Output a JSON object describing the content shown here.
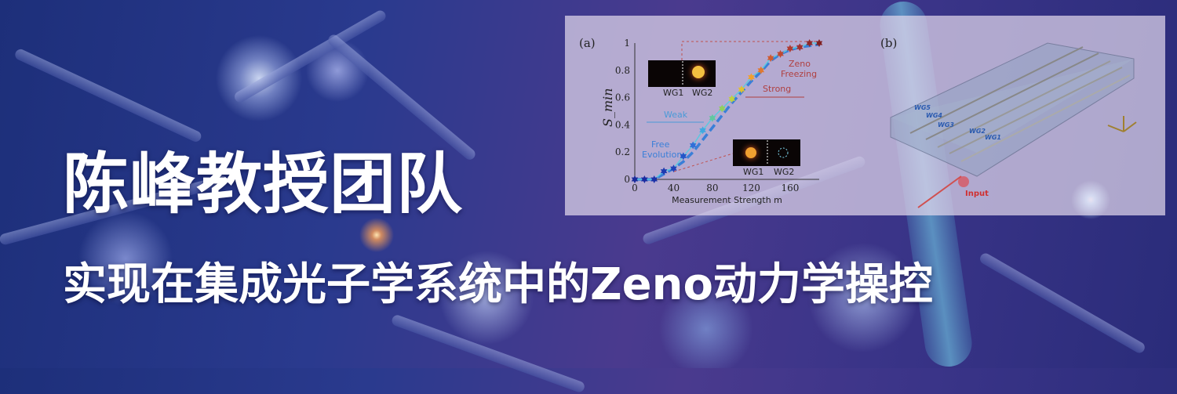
{
  "headline": "陈峰教授团队",
  "subheadline": "实现在集成光子学系统中的Zeno动力学操控",
  "colors": {
    "text": "#ffffff",
    "background": "#2a3a8e",
    "panel": "#e1d7eb",
    "fit_line": "#3a7fd8",
    "point_line": "#5cc8e0"
  },
  "chart_data": {
    "panel_label": "(a)",
    "type": "line",
    "xlabel": "Measurement Strength m",
    "ylabel": "S_min",
    "xlim": [
      0,
      190
    ],
    "ylim": [
      0,
      1
    ],
    "xticks": [
      "0",
      "40",
      "80",
      "120",
      "160"
    ],
    "yticks": [
      "0",
      "0.2",
      "0.4",
      "0.6",
      "0.8",
      "1"
    ],
    "x": [
      0,
      10,
      20,
      30,
      40,
      50,
      60,
      70,
      80,
      90,
      100,
      110,
      120,
      130,
      140,
      150,
      160,
      170,
      180,
      190
    ],
    "series": [
      {
        "marker": "star",
        "values": [
          0,
          0,
          0,
          0.06,
          0.08,
          0.17,
          0.25,
          0.36,
          0.45,
          0.52,
          0.59,
          0.66,
          0.75,
          0.8,
          0.89,
          0.92,
          0.96,
          0.97,
          1.0,
          1.0
        ]
      },
      {
        "style": "dashed",
        "values": [
          0,
          0,
          0,
          0.04,
          0.08,
          0.13,
          0.2,
          0.29,
          0.38,
          0.47,
          0.56,
          0.64,
          0.72,
          0.79,
          0.87,
          0.92,
          0.95,
          0.97,
          0.98,
          0.99
        ]
      }
    ],
    "annotations": {
      "weak": "Weak",
      "strong": "Strong",
      "zeno_1": "Zeno",
      "zeno_2": "Freezing",
      "free_1": "Free",
      "free_2": "Evolution",
      "inset_top": {
        "left": "WG1",
        "right": "WG2"
      },
      "inset_bottom": {
        "left": "WG1",
        "right": "WG2"
      }
    }
  },
  "diagram": {
    "panel_label": "(b)",
    "waveguides": [
      "WG1",
      "WG2",
      "WG3",
      "WG4",
      "WG5"
    ],
    "input_label": "Input",
    "axes": [
      "x",
      "y",
      "z"
    ]
  }
}
